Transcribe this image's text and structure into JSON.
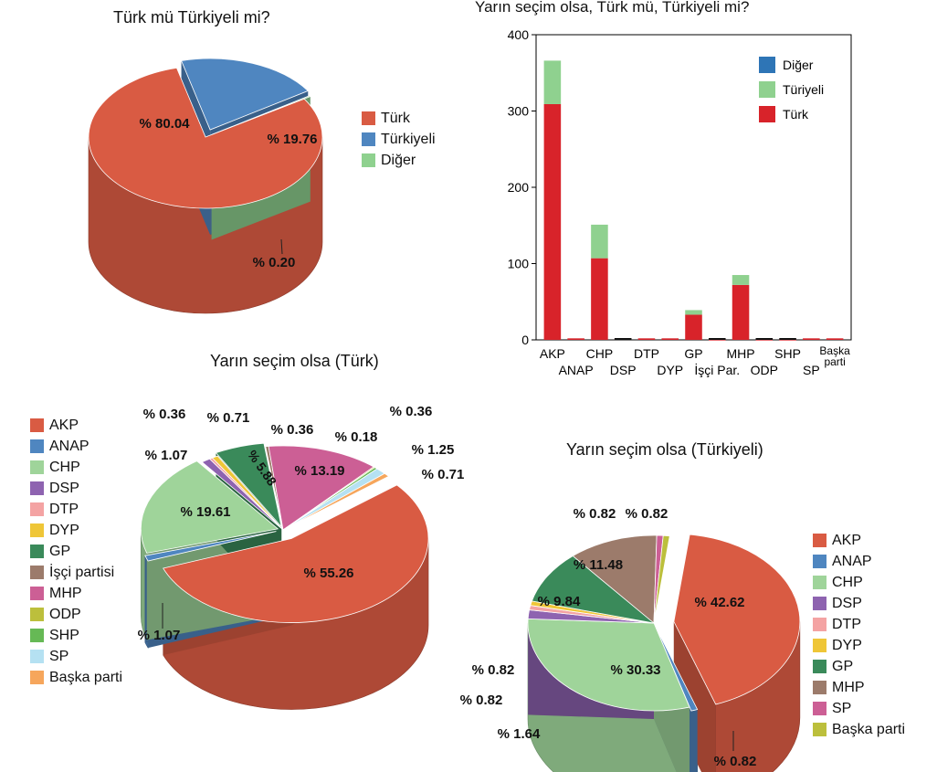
{
  "chart_data": [
    {
      "type": "pie",
      "title": "Türk mü Türkiyeli mi?",
      "labels": [
        "Türk",
        "Türkiyeli",
        "Diğer"
      ],
      "values": [
        80.04,
        19.76,
        0.2
      ],
      "value_labels": [
        "% 80.04",
        "% 19.76",
        "% 0.20"
      ],
      "colors": [
        "#d95b43",
        "#4f86c0",
        "#8fd18f"
      ],
      "legend_position": "right"
    },
    {
      "type": "bar",
      "stacked": true,
      "title": "Yarın seçim olsa, Türk mü, Türkiyeli mi?",
      "categories": [
        "AKP",
        "ANAP",
        "CHP",
        "DSP",
        "DTP",
        "DYP",
        "GP",
        "İşçi Par.",
        "MHP",
        "ODP",
        "SHP",
        "SP",
        "Başka parti"
      ],
      "series": [
        {
          "name": "Türk",
          "color": "#d8232a",
          "values": [
            309,
            2,
            107,
            2,
            2,
            2,
            33,
            1,
            72,
            1,
            1,
            2,
            2
          ]
        },
        {
          "name": "Türiyeli",
          "color": "#8fd18f",
          "values": [
            57,
            0,
            44,
            0,
            0,
            0,
            6,
            0,
            13,
            0,
            0,
            0,
            0
          ]
        },
        {
          "name": "Diğer",
          "color": "#2e75b6",
          "values": [
            0,
            0,
            0,
            0,
            0,
            0,
            0,
            0,
            0,
            0,
            0,
            0,
            0
          ]
        }
      ],
      "ylim": [
        0,
        400
      ],
      "yticks": [
        0,
        100,
        200,
        300,
        400
      ],
      "legend_position": "top-right"
    },
    {
      "type": "pie",
      "title": "Yarın seçim olsa (Türk)",
      "labels": [
        "AKP",
        "ANAP",
        "CHP",
        "DSP",
        "DTP",
        "DYP",
        "GP",
        "İşçi partisi",
        "MHP",
        "ODP",
        "SHP",
        "SP",
        "Başka parti"
      ],
      "values": [
        55.26,
        1.07,
        19.61,
        1.07,
        0.36,
        0.71,
        5.88,
        0.36,
        13.19,
        0.18,
        0.36,
        1.25,
        0.71
      ],
      "value_labels": [
        "% 55.26",
        "% 1.07",
        "% 19.61",
        "% 1.07",
        "% 0.36",
        "% 0.71",
        "% 5.88",
        "% 0.36",
        "% 13.19",
        "% 0.18",
        "% 0.36",
        "% 1.25",
        "% 0.71"
      ],
      "colors": [
        "#d95b43",
        "#4f86c0",
        "#9fd49a",
        "#8e63b0",
        "#f4a3a3",
        "#efc637",
        "#3a8a5a",
        "#9c7b6b",
        "#cc5f95",
        "#bcbf3c",
        "#66b955",
        "#b5e1f2",
        "#f6a65c"
      ],
      "legend_position": "left"
    },
    {
      "type": "pie",
      "title": "Yarın seçim olsa (Türkiyeli)",
      "labels": [
        "AKP",
        "ANAP",
        "CHP",
        "DSP",
        "DTP",
        "DYP",
        "GP",
        "MHP",
        "SP",
        "Başka parti"
      ],
      "values": [
        42.62,
        0.82,
        30.33,
        1.64,
        0.82,
        0.82,
        9.84,
        11.48,
        0.82,
        0.82
      ],
      "value_labels": [
        "% 42.62",
        "% 0.82",
        "% 30.33",
        "% 1.64",
        "% 0.82",
        "% 0.82",
        "% 9.84",
        "% 11.48",
        "% 0.82",
        "% 0.82"
      ],
      "colors": [
        "#d95b43",
        "#4f86c0",
        "#9fd49a",
        "#8e63b0",
        "#f4a3a3",
        "#efc637",
        "#3a8a5a",
        "#9c7b6b",
        "#cc5f95",
        "#bcbf3c"
      ],
      "legend_position": "right"
    }
  ]
}
